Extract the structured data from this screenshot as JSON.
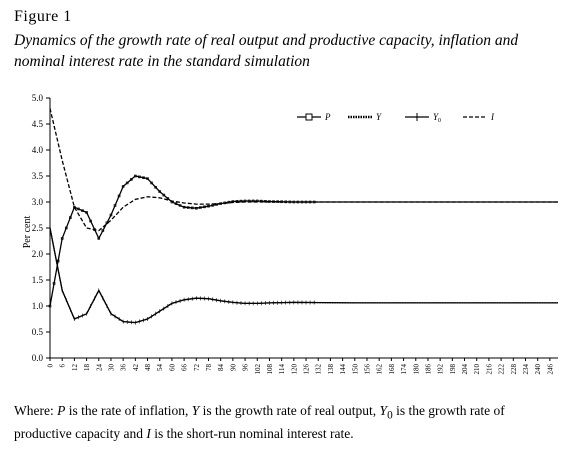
{
  "figure": {
    "label": "Figure 1",
    "title": "Dynamics of the growth rate of real output and productive capacity, inflation and nominal interest rate in the standard simulation",
    "caption": {
      "prefix": "Where: ",
      "p_var": "P",
      "p_text": " is the rate of inflation, ",
      "y_var": "Y",
      "y_text": " is the growth rate of real output, ",
      "y0_var": "Y",
      "y0_sub": "0",
      "y0_text": " is the growth rate of productive capacity and ",
      "i_var": "I",
      "i_text": " is the short-run nominal interest rate."
    }
  },
  "chart_data": {
    "type": "line",
    "ylabel": "Per cent",
    "xlabel": "",
    "ylim": [
      0,
      5
    ],
    "xlim": [
      0,
      250
    ],
    "yticks": [
      "0.0",
      "0.5",
      "1.0",
      "1.5",
      "2.0",
      "2.5",
      "3.0",
      "3.5",
      "4.0",
      "4.5",
      "5.0"
    ],
    "xticks": [
      "0",
      "6",
      "12",
      "18",
      "24",
      "30",
      "36",
      "42",
      "48",
      "54",
      "60",
      "66",
      "72",
      "78",
      "84",
      "90",
      "96",
      "102",
      "108",
      "114",
      "120",
      "126",
      "132",
      "138",
      "144",
      "150",
      "156",
      "162",
      "168",
      "174",
      "180",
      "186",
      "192",
      "198",
      "204",
      "210",
      "216",
      "222",
      "228",
      "234",
      "240",
      "246"
    ],
    "grid": false,
    "legend_position": "top-right",
    "series": [
      {
        "name": "P",
        "marker": "square",
        "color": "#000000",
        "x": [
          0,
          6,
          12,
          18,
          24,
          30,
          36,
          42,
          48,
          54,
          60,
          66,
          72,
          78,
          84,
          90,
          96,
          102,
          108,
          120,
          150,
          200,
          250
        ],
        "values": [
          1.0,
          2.3,
          2.9,
          2.8,
          2.3,
          2.75,
          3.3,
          3.5,
          3.45,
          3.2,
          3.0,
          2.9,
          2.88,
          2.92,
          2.97,
          3.01,
          3.02,
          3.02,
          3.01,
          3.0,
          3.0,
          3.0,
          3.0
        ]
      },
      {
        "name": "Y",
        "marker": "dots",
        "color": "#000000",
        "x": [
          0,
          6,
          12,
          18,
          24,
          30,
          36,
          42,
          48,
          54,
          60,
          66,
          72,
          78,
          84,
          90,
          96,
          102,
          108,
          120,
          150,
          200,
          250
        ],
        "values": [
          2.5,
          1.3,
          0.75,
          0.85,
          1.3,
          0.85,
          0.7,
          0.68,
          0.75,
          0.9,
          1.05,
          1.12,
          1.15,
          1.14,
          1.1,
          1.07,
          1.05,
          1.05,
          1.06,
          1.07,
          1.06,
          1.06,
          1.06
        ]
      },
      {
        "name": "Y0",
        "marker": "cross",
        "color": "#000000",
        "x": [
          0,
          6,
          12,
          18,
          24,
          30,
          36,
          42,
          48,
          54,
          60,
          66,
          72,
          78,
          84,
          90,
          96,
          102,
          108,
          120,
          150,
          200,
          250
        ],
        "values": [
          2.5,
          1.3,
          0.75,
          0.85,
          1.3,
          0.85,
          0.7,
          0.68,
          0.75,
          0.9,
          1.05,
          1.12,
          1.15,
          1.14,
          1.1,
          1.07,
          1.05,
          1.05,
          1.06,
          1.07,
          1.06,
          1.06,
          1.06
        ]
      },
      {
        "name": "I",
        "marker": "dash",
        "color": "#000000",
        "x": [
          0,
          6,
          12,
          18,
          24,
          30,
          36,
          42,
          48,
          54,
          60,
          66,
          72,
          78,
          84,
          90,
          96,
          102,
          108,
          120,
          150,
          200,
          250
        ],
        "values": [
          4.8,
          3.8,
          2.9,
          2.5,
          2.45,
          2.65,
          2.9,
          3.05,
          3.1,
          3.08,
          3.02,
          2.98,
          2.96,
          2.96,
          2.97,
          2.99,
          3.0,
          3.0,
          3.0,
          3.0,
          3.0,
          3.0,
          3.0
        ]
      }
    ]
  }
}
